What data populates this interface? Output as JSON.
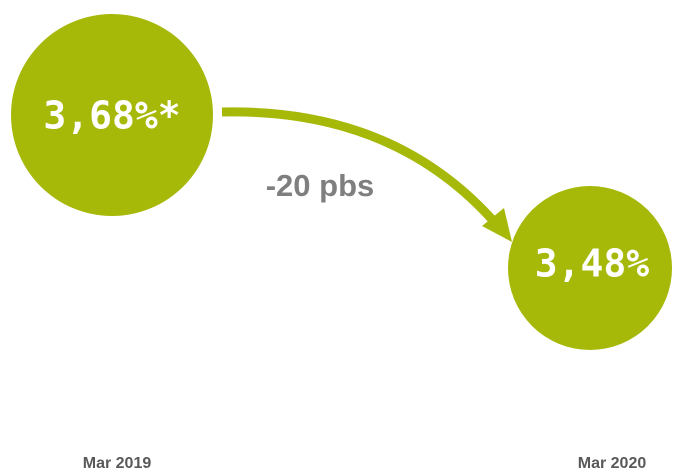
{
  "nodes": [
    {
      "value": "3,68%*",
      "date": "Mar 2019"
    },
    {
      "value": "3,48%",
      "date": "Mar 2020"
    }
  ],
  "change": "-20 pbs"
}
